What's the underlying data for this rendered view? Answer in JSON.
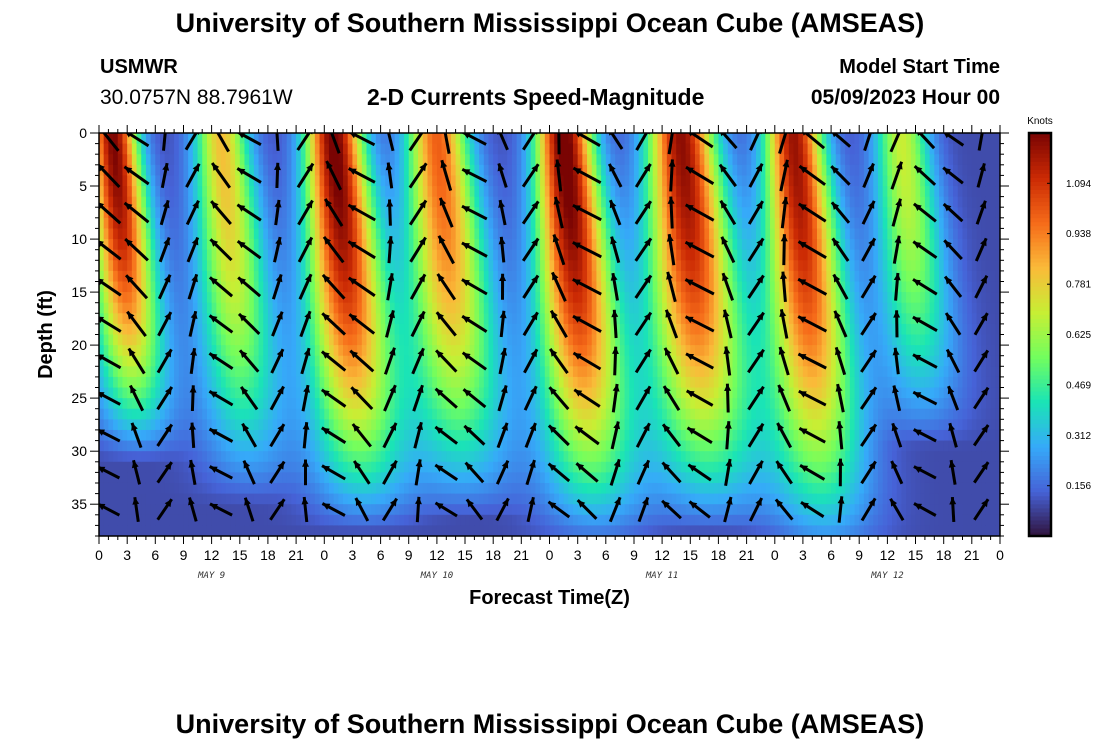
{
  "header": {
    "title": "University of Southern Mississippi Ocean Cube (AMSEAS)",
    "station": "USMWR",
    "coords": "30.0757N  88.7961W",
    "subtitle": "2-D Currents Speed-Magnitude",
    "model_start_label": "Model Start Time",
    "model_start_value": "05/09/2023 Hour 00"
  },
  "footer": {
    "title": "University of Southern Mississippi Ocean Cube (AMSEAS)"
  },
  "chart_data": {
    "type": "heatmap",
    "title": "2-D Currents Speed-Magnitude",
    "xlabel": "Forecast Time(Z)",
    "ylabel": "Depth (ft)",
    "x_range_hours": [
      0,
      96
    ],
    "y_range_ft": [
      0,
      38
    ],
    "x_ticks": [
      {
        "hour": 0,
        "label": "0"
      },
      {
        "hour": 3,
        "label": "3"
      },
      {
        "hour": 6,
        "label": "6"
      },
      {
        "hour": 9,
        "label": "9"
      },
      {
        "hour": 12,
        "label": "12"
      },
      {
        "hour": 15,
        "label": "15"
      },
      {
        "hour": 18,
        "label": "18"
      },
      {
        "hour": 21,
        "label": "21"
      },
      {
        "hour": 24,
        "label": "0"
      },
      {
        "hour": 27,
        "label": "3"
      },
      {
        "hour": 30,
        "label": "6"
      },
      {
        "hour": 33,
        "label": "9"
      },
      {
        "hour": 36,
        "label": "12"
      },
      {
        "hour": 39,
        "label": "15"
      },
      {
        "hour": 42,
        "label": "18"
      },
      {
        "hour": 45,
        "label": "21"
      },
      {
        "hour": 48,
        "label": "0"
      },
      {
        "hour": 51,
        "label": "3"
      },
      {
        "hour": 54,
        "label": "6"
      },
      {
        "hour": 57,
        "label": "9"
      },
      {
        "hour": 60,
        "label": "12"
      },
      {
        "hour": 63,
        "label": "15"
      },
      {
        "hour": 66,
        "label": "18"
      },
      {
        "hour": 69,
        "label": "21"
      },
      {
        "hour": 72,
        "label": "0"
      },
      {
        "hour": 75,
        "label": "3"
      },
      {
        "hour": 78,
        "label": "6"
      },
      {
        "hour": 81,
        "label": "9"
      },
      {
        "hour": 84,
        "label": "12"
      },
      {
        "hour": 87,
        "label": "15"
      },
      {
        "hour": 90,
        "label": "18"
      },
      {
        "hour": 93,
        "label": "21"
      },
      {
        "hour": 96,
        "label": "0"
      }
    ],
    "day_labels": [
      {
        "hour": 12,
        "label": "MAY 9"
      },
      {
        "hour": 36,
        "label": "MAY 10"
      },
      {
        "hour": 60,
        "label": "MAY 11"
      },
      {
        "hour": 84,
        "label": "MAY 12"
      }
    ],
    "y_ticks": [
      0,
      5,
      10,
      15,
      20,
      25,
      30,
      35
    ],
    "colorbar": {
      "label": "Knots",
      "min": 0,
      "max": 1.25,
      "ticks": [
        "0.156",
        "0.312",
        "0.469",
        "0.625",
        "0.781",
        "0.938",
        "1.094"
      ],
      "tick_values": [
        0.156,
        0.312,
        0.469,
        0.625,
        0.781,
        0.938,
        1.094
      ],
      "colormap": [
        "#30123b",
        "#4662d7",
        "#36aaf9",
        "#1ae4b6",
        "#72fe5e",
        "#c7ef34",
        "#faba39",
        "#f66b19",
        "#cb2a04",
        "#7a0403"
      ]
    },
    "speed_peaks": [
      {
        "center_hour": 1.5,
        "width_hours": 2.5,
        "peak": 1.15,
        "max_depth_ft": 23
      },
      {
        "center_hour": 13.0,
        "width_hours": 2.8,
        "peak": 0.72,
        "max_depth_ft": 26
      },
      {
        "center_hour": 25.0,
        "width_hours": 3.0,
        "peak": 1.18,
        "max_depth_ft": 28
      },
      {
        "center_hour": 36.0,
        "width_hours": 3.2,
        "peak": 0.9,
        "max_depth_ft": 27
      },
      {
        "center_hour": 49.5,
        "width_hours": 3.0,
        "peak": 1.2,
        "max_depth_ft": 29
      },
      {
        "center_hour": 62.0,
        "width_hours": 3.5,
        "peak": 1.12,
        "max_depth_ft": 28
      },
      {
        "center_hour": 74.0,
        "width_hours": 3.0,
        "peak": 1.1,
        "max_depth_ft": 30
      },
      {
        "center_hour": 85.5,
        "width_hours": 2.8,
        "peak": 0.6,
        "max_depth_ft": 22
      }
    ]
  }
}
